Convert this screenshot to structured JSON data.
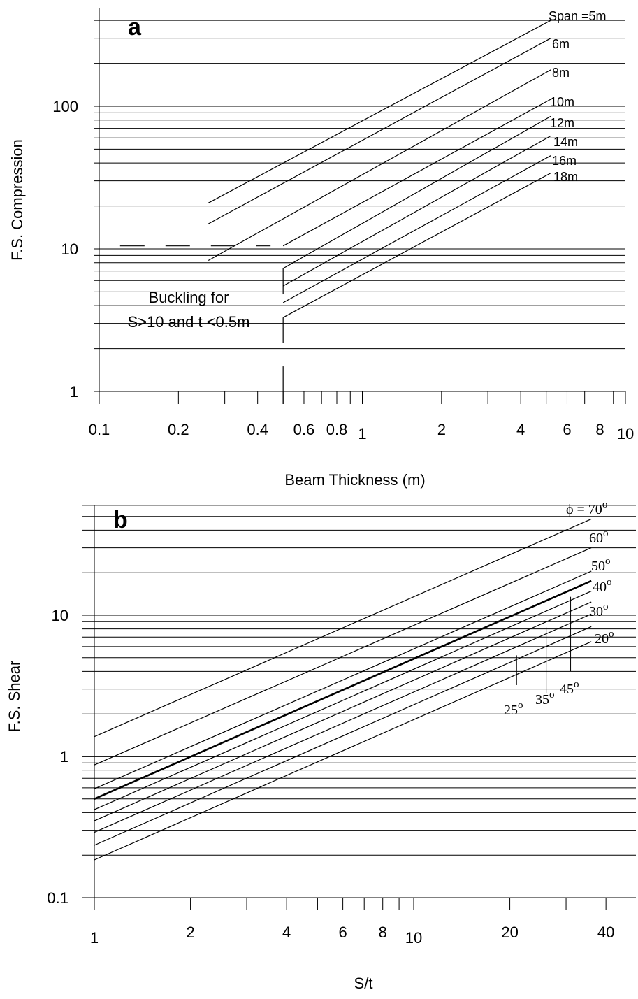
{
  "chart_data": [
    {
      "panel": "a",
      "type": "line",
      "xlabel": "Beam Thickness (m)",
      "ylabel": "F.S. Compression",
      "xscale": "log",
      "yscale": "log",
      "xlim": [
        0.1,
        10
      ],
      "ylim": [
        1,
        500
      ],
      "grid": "horizontal",
      "xticks": [
        {
          "v": 0.1,
          "label": "0.1"
        },
        {
          "v": 0.2,
          "label": "0.2"
        },
        {
          "v": 0.4,
          "label": "0.4"
        },
        {
          "v": 0.6,
          "label": "0.6"
        },
        {
          "v": 0.8,
          "label": "0.8"
        },
        {
          "v": 1,
          "label": "1"
        },
        {
          "v": 2,
          "label": "2"
        },
        {
          "v": 4,
          "label": "4"
        },
        {
          "v": 6,
          "label": "6"
        },
        {
          "v": 8,
          "label": "8"
        },
        {
          "v": 10,
          "label": "10"
        }
      ],
      "yticks": [
        {
          "v": 1,
          "label": "1"
        },
        {
          "v": 10,
          "label": "10"
        },
        {
          "v": 100,
          "label": "100"
        }
      ],
      "series": [
        {
          "name": "Span =5m",
          "label": "Span =5m",
          "x": [
            0.26,
            5.2
          ],
          "y": [
            21,
            400
          ]
        },
        {
          "name": "6m",
          "label": "6m",
          "x": [
            0.26,
            5.2
          ],
          "y": [
            15,
            300
          ]
        },
        {
          "name": "8m",
          "label": "8m",
          "x": [
            0.26,
            5.2
          ],
          "y": [
            8.3,
            180
          ]
        },
        {
          "name": "10m",
          "label": "10m",
          "x": [
            0.5,
            5.2
          ],
          "y": [
            10.5,
            112
          ]
        },
        {
          "name": "12m",
          "label": "12m",
          "x": [
            0.5,
            5.2
          ],
          "y": [
            7.3,
            85
          ]
        },
        {
          "name": "14m",
          "label": "14m",
          "x": [
            0.5,
            5.2
          ],
          "y": [
            5.5,
            62
          ]
        },
        {
          "name": "16m",
          "label": "16m",
          "x": [
            0.5,
            5.2
          ],
          "y": [
            4.2,
            45
          ]
        },
        {
          "name": "18m",
          "label": "18m",
          "x": [
            0.5,
            5.2
          ],
          "y": [
            3.3,
            34
          ]
        }
      ],
      "buckling_threshold": {
        "y": 10.5,
        "x_from": 0.12,
        "x_to": 0.5,
        "style": "dashed"
      },
      "annotation": [
        "Buckling for",
        "S>10 and t <0.5m"
      ]
    },
    {
      "panel": "b",
      "type": "line",
      "xlabel": "S/t",
      "ylabel": "F.S. Shear",
      "xscale": "log",
      "yscale": "log",
      "xlim": [
        1,
        50
      ],
      "ylim": [
        0.1,
        60
      ],
      "grid": "horizontal",
      "xticks": [
        {
          "v": 1,
          "label": "1"
        },
        {
          "v": 2,
          "label": "2"
        },
        {
          "v": 4,
          "label": "4"
        },
        {
          "v": 6,
          "label": "6"
        },
        {
          "v": 8,
          "label": "8"
        },
        {
          "v": 10,
          "label": "10"
        },
        {
          "v": 20,
          "label": "20"
        },
        {
          "v": 40,
          "label": "40"
        }
      ],
      "yticks": [
        {
          "v": 0.1,
          "label": "0.1"
        },
        {
          "v": 1,
          "label": "1"
        },
        {
          "v": 10,
          "label": "10"
        }
      ],
      "series": [
        {
          "name": "70",
          "label": "ϕ = 70",
          "x": [
            1,
            36
          ],
          "y": [
            1.38,
            48
          ]
        },
        {
          "name": "60",
          "label": "60",
          "x": [
            1,
            36
          ],
          "y": [
            0.87,
            30
          ]
        },
        {
          "name": "50",
          "label": "50",
          "x": [
            1,
            36
          ],
          "y": [
            0.59,
            20.5
          ]
        },
        {
          "name": "45",
          "label": "45",
          "x": [
            1,
            36
          ],
          "y": [
            0.5,
            17.5
          ],
          "bold": true
        },
        {
          "name": "40",
          "label": "40",
          "x": [
            1,
            36
          ],
          "y": [
            0.42,
            14.8
          ]
        },
        {
          "name": "35",
          "label": "35",
          "x": [
            1,
            36
          ],
          "y": [
            0.35,
            12.4
          ]
        },
        {
          "name": "30",
          "label": "30",
          "x": [
            1,
            36
          ],
          "y": [
            0.29,
            10.2
          ]
        },
        {
          "name": "25",
          "label": "25",
          "x": [
            1,
            36
          ],
          "y": [
            0.235,
            8.3
          ]
        },
        {
          "name": "20",
          "label": "20",
          "x": [
            1,
            36
          ],
          "y": [
            0.185,
            6.5
          ]
        }
      ],
      "pointer_labels": [
        {
          "label": "25",
          "x": 21,
          "y_from": 3.2,
          "y_to": 5.2
        },
        {
          "label": "35",
          "x": 26,
          "y_from": 2.8,
          "y_to": 8.2
        },
        {
          "label": "45",
          "x": 31,
          "y_from": 4.0,
          "y_to": 13.5
        }
      ],
      "degree_symbol": "o"
    }
  ]
}
